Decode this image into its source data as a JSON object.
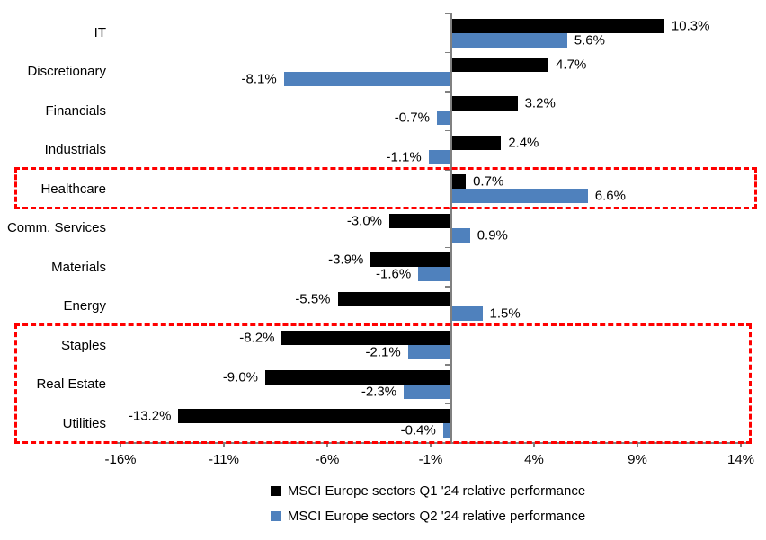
{
  "chart_data": {
    "type": "bar",
    "orientation": "horizontal",
    "categories": [
      "IT",
      "Discretionary",
      "Financials",
      "Industrials",
      "Healthcare",
      "Comm. Services",
      "Materials",
      "Energy",
      "Staples",
      "Real Estate",
      "Utilities"
    ],
    "series": [
      {
        "name": "MSCI Europe sectors Q1 '24 relative performance",
        "color": "#000000",
        "values": [
          10.3,
          4.7,
          3.2,
          2.4,
          0.7,
          -3.0,
          -3.9,
          -5.5,
          -8.2,
          -9.0,
          -13.2
        ],
        "labels": [
          "10.3%",
          "4.7%",
          "3.2%",
          "2.4%",
          "0.7%",
          "-3.0%",
          "-3.9%",
          "-5.5%",
          "-8.2%",
          "-9.0%",
          "-13.2%"
        ]
      },
      {
        "name": "MSCI Europe sectors Q2 '24 relative performance",
        "color": "#4F81BD",
        "values": [
          5.6,
          -8.1,
          -0.7,
          -1.1,
          6.6,
          0.9,
          -1.6,
          1.5,
          -2.1,
          -2.3,
          -0.4
        ],
        "labels": [
          "5.6%",
          "-8.1%",
          "-0.7%",
          "-1.1%",
          "6.6%",
          "0.9%",
          "-1.6%",
          "1.5%",
          "-2.1%",
          "-2.3%",
          "-0.4%"
        ]
      }
    ],
    "x_ticks": [
      {
        "value": -16,
        "label": "-16%"
      },
      {
        "value": -11,
        "label": "-11%"
      },
      {
        "value": -6,
        "label": "-6%"
      },
      {
        "value": -1,
        "label": "-1%"
      },
      {
        "value": 4,
        "label": "4%"
      },
      {
        "value": 9,
        "label": "9%"
      },
      {
        "value": 14,
        "label": "14%"
      }
    ],
    "xlim": [
      -16.5,
      14.5
    ],
    "grid": false,
    "legend_position": "bottom",
    "annotations": {
      "highlight_boxes": [
        {
          "categories": [
            "Healthcare"
          ],
          "color": "#FF0000",
          "style": "dashed"
        },
        {
          "categories": [
            "Staples",
            "Real Estate",
            "Utilities"
          ],
          "color": "#FF0000",
          "style": "dashed"
        }
      ]
    }
  },
  "colors": {
    "axis": "#808080",
    "highlight": "#FF0000",
    "background": "#FFFFFF"
  }
}
